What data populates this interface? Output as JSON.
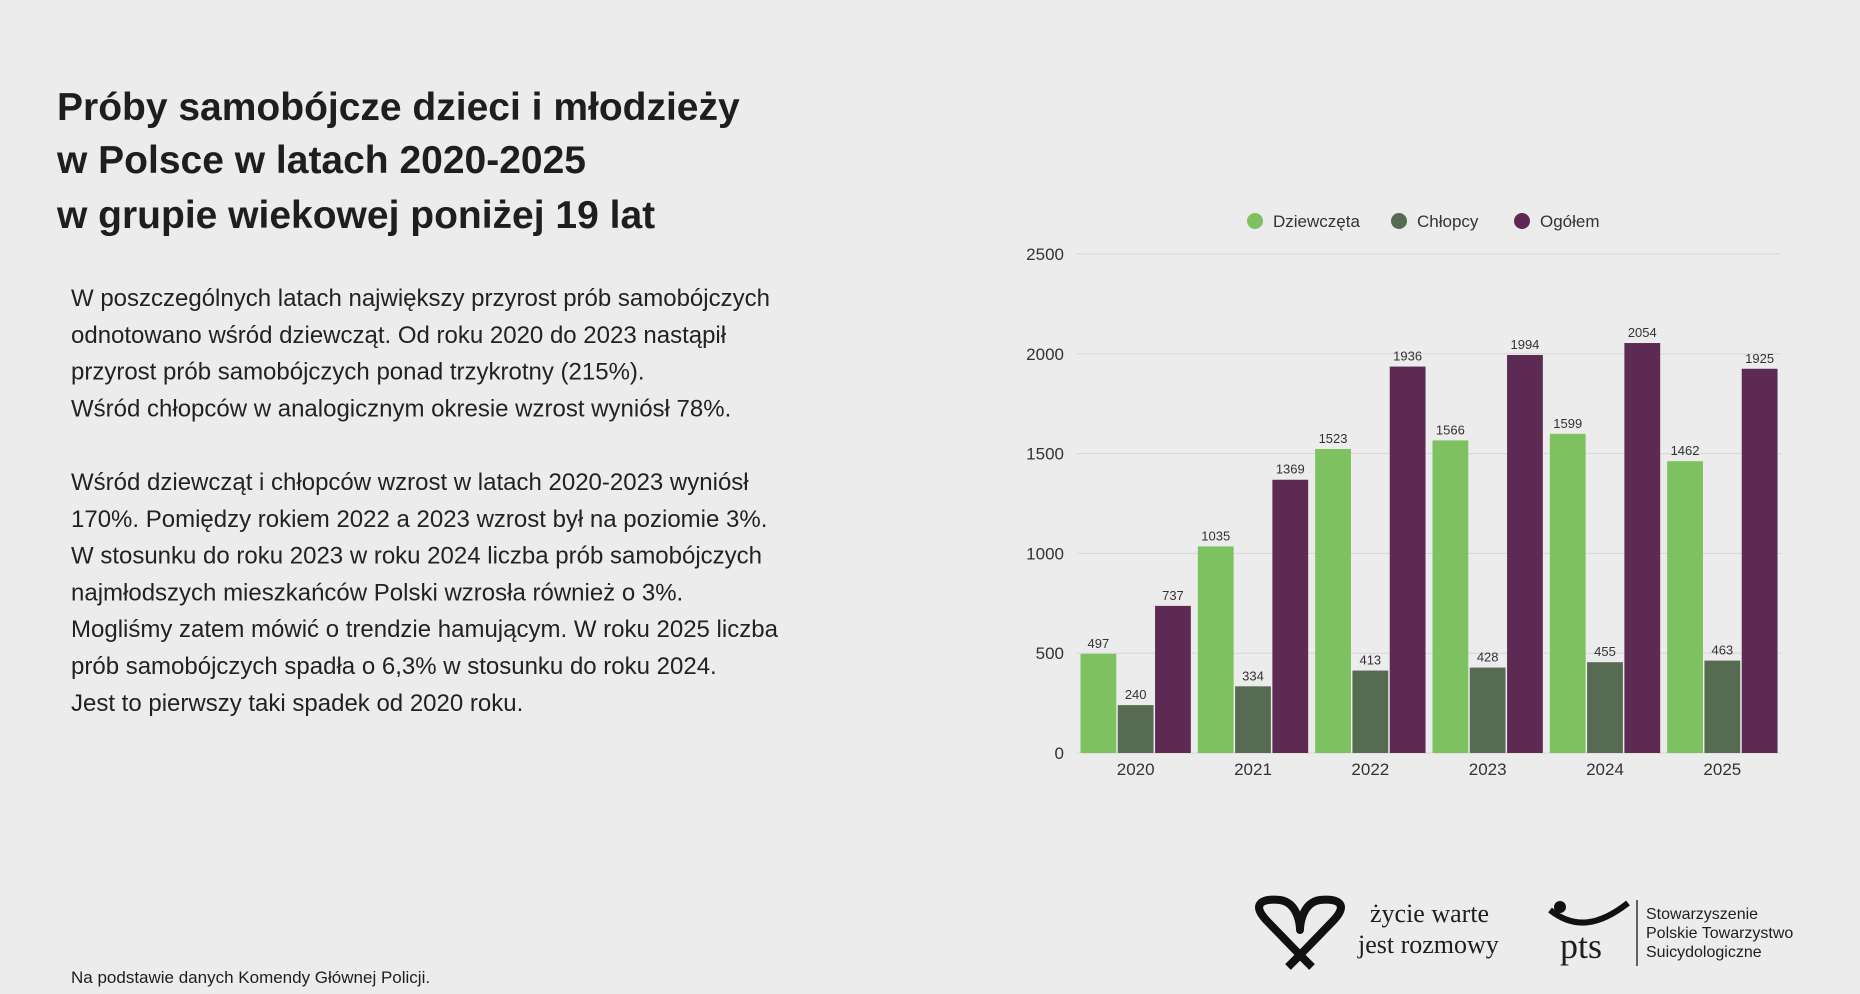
{
  "title_lines": [
    "Próby samobójcze dzieci i młodzieży",
    "w Polsce w latach 2020-2025",
    "w grupie wiekowej poniżej 19 lat"
  ],
  "paragraphs": [
    [
      "W poszczególnych latach największy przyrost prób samobójczych",
      "odnotowano wśród dziewcząt. Od roku 2020 do 2023 nastąpił",
      "przyrost prób samobójczych ponad trzykrotny (215%).",
      "Wśród chłopców w analogicznym okresie wzrost wyniósł 78%."
    ],
    [
      "Wśród dziewcząt i chłopców wzrost w latach 2020-2023 wyniósł",
      "170%. Pomiędzy rokiem 2022 a 2023 wzrost był na poziomie 3%.",
      "W stosunku do roku 2023 w roku 2024 liczba prób samobójczych",
      "najmłodszych mieszkańców Polski wzrosła również o 3%.",
      "Mogliśmy zatem mówić o trendzie hamującym. W roku 2025 liczba",
      "prób samobójczych spadła o 6,3% w stosunku do roku 2024.",
      "Jest to pierwszy taki spadek od  2020 roku."
    ]
  ],
  "footnote": "Na podstawie danych Komendy Głównej Policji.",
  "logos": {
    "zycie": [
      "życie warte",
      "jest rozmowy"
    ],
    "pts": "pts",
    "pts_name": [
      "Stowarzyszenie",
      "Polskie Towarzystwo",
      "Suicydologiczne"
    ]
  },
  "chart_data": {
    "type": "bar",
    "categories": [
      "2020",
      "2021",
      "2022",
      "2023",
      "2024",
      "2025"
    ],
    "series": [
      {
        "name": "Dziewczęta",
        "color": "#7dc160",
        "values": [
          497,
          1035,
          1523,
          1566,
          1599,
          1462
        ]
      },
      {
        "name": "Chłopcy",
        "color": "#566b52",
        "values": [
          240,
          334,
          413,
          428,
          455,
          463
        ]
      },
      {
        "name": "Ogółem",
        "color": "#5c2a52",
        "values": [
          737,
          1369,
          1936,
          1994,
          2054,
          1925
        ]
      }
    ],
    "ylim": [
      0,
      2500
    ],
    "yticks": [
      0,
      500,
      1000,
      1500,
      2000,
      2500
    ],
    "grid": true,
    "legend": "top"
  }
}
